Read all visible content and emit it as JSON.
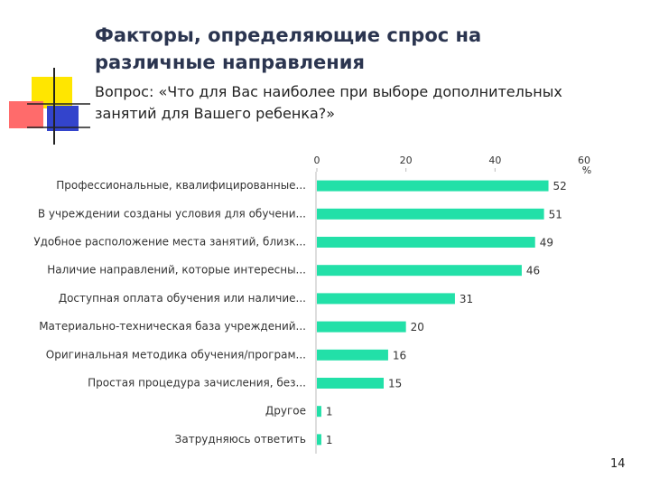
{
  "title": "Факторы, определяющие спрос на различные направления",
  "subtitle": "Вопрос: «Что для Вас наиболее при выборе дополнительных занятий для Вашего ребенка?»",
  "page_number": "14",
  "chart_data": {
    "type": "bar",
    "orientation": "horizontal",
    "categories": [
      "Профессиональные, квалифицированные...",
      "В учреждении созданы условия для обучени...",
      "Удобное расположение места занятий, близк...",
      "Наличие направлений, которые интересны...",
      "Доступная оплата обучения или наличие...",
      "Материально-техническая база учреждений...",
      "Оригинальная методика обучения/програм...",
      "Простая процедура зачисления, без...",
      "Другое",
      "Затрудняюсь ответить"
    ],
    "values": [
      52,
      51,
      49,
      46,
      31,
      20,
      16,
      15,
      1,
      1
    ],
    "color": "#22e0a8",
    "xlim": [
      0,
      60
    ],
    "xticks": [
      0,
      20,
      40,
      60
    ],
    "xlabel": "%",
    "grid": false
  }
}
